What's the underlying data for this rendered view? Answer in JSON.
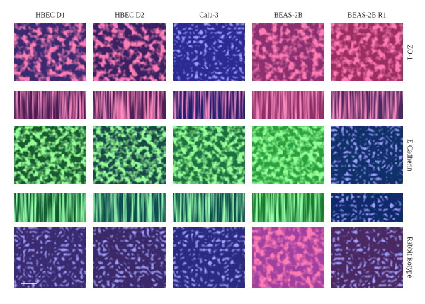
{
  "columns": [
    "HBEC D1",
    "HBEC D2",
    "Calu-3",
    "BEAS-2B",
    "BEAS-2B R1"
  ],
  "row_labels": [
    "ZO-1",
    "E Cadherin",
    "Rabbit isotype"
  ]
}
